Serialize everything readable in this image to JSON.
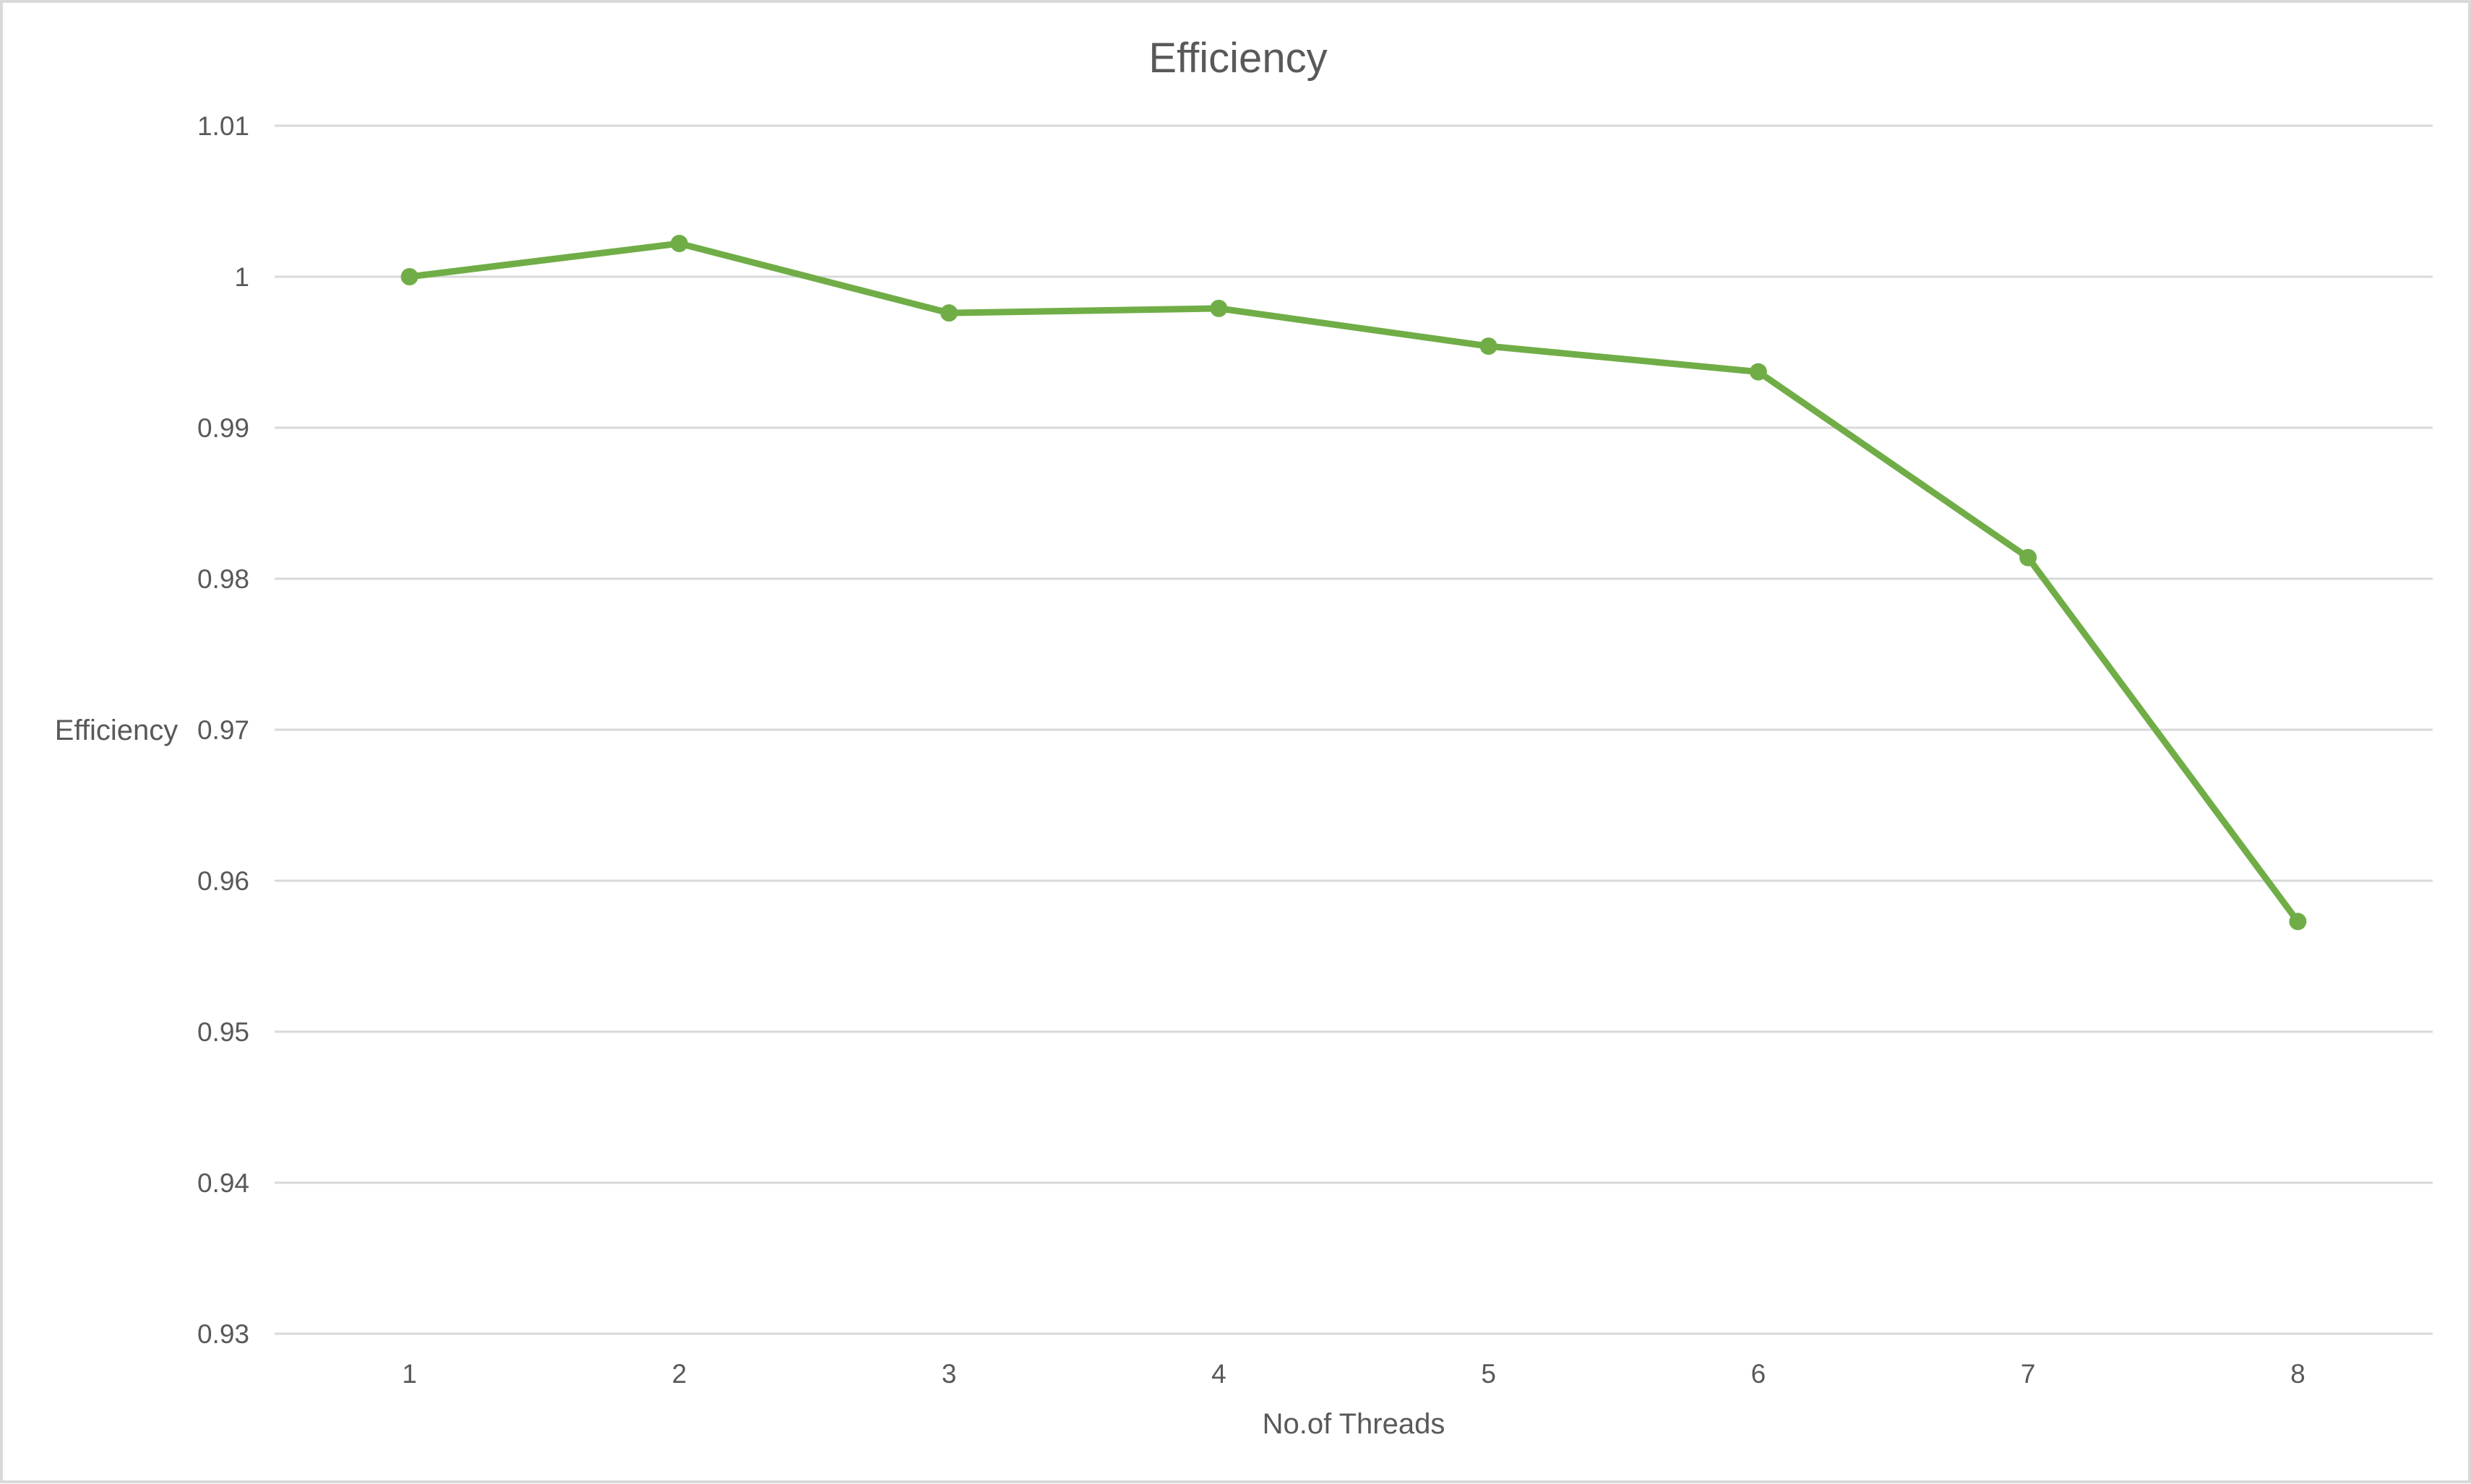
{
  "chart_data": {
    "type": "line",
    "title": "Efficiency",
    "xlabel": "No.of Threads",
    "ylabel": "Efficiency",
    "categories": [
      "1",
      "2",
      "3",
      "4",
      "5",
      "6",
      "7",
      "8"
    ],
    "series": [
      {
        "values": [
          1.0,
          1.0022,
          0.9976,
          0.9979,
          0.9954,
          0.9937,
          0.9814,
          0.9573
        ],
        "color": "#70ad47"
      }
    ],
    "ylim": [
      0.93,
      1.01
    ],
    "yticks": [
      "0.93",
      "0.94",
      "0.95",
      "0.96",
      "0.97",
      "0.98",
      "0.99",
      "1",
      "1.01"
    ],
    "grid": true,
    "legend": "none",
    "markers": true
  }
}
